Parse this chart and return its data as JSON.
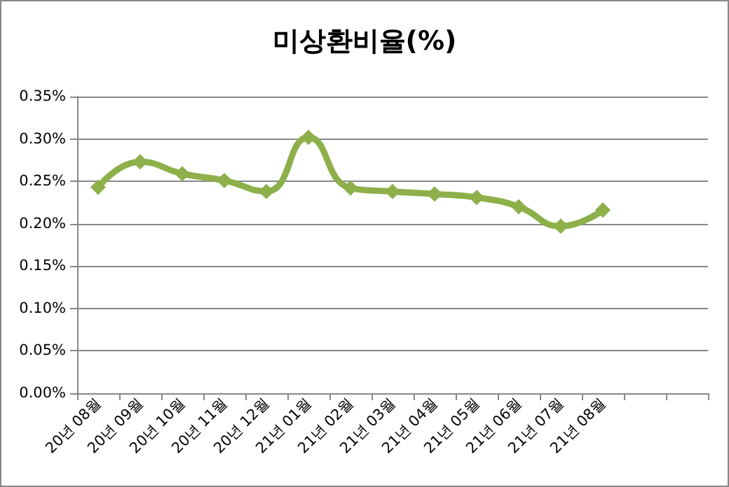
{
  "chart_data": {
    "type": "line",
    "title": "미상환비율(%)",
    "categories": [
      "20년 08월",
      "20년 09월",
      "20년 10월",
      "20년 11월",
      "20년 12월",
      "21년 01월",
      "21년 02월",
      "21년 03월",
      "21년 04월",
      "21년 05월",
      "21년 06월",
      "21년 07월",
      "21년 08월",
      null,
      null
    ],
    "series": [
      {
        "color": "#8db04a",
        "values": [
          0.243,
          0.273,
          0.259,
          0.251,
          0.238,
          0.302,
          0.242,
          0.238,
          0.235,
          0.231,
          0.22,
          0.197,
          0.216,
          null,
          null
        ]
      }
    ],
    "ylim": [
      0,
      0.35
    ],
    "yticks": [
      {
        "value": 0,
        "label": "0.00%"
      },
      {
        "value": 0.05,
        "label": "0.05%"
      },
      {
        "value": 0.1,
        "label": "0.10%"
      },
      {
        "value": 0.15,
        "label": "0.15%"
      },
      {
        "value": 0.2,
        "label": "0.20%"
      },
      {
        "value": 0.25,
        "label": "0.25%"
      },
      {
        "value": 0.3,
        "label": "0.30%"
      },
      {
        "value": 0.35,
        "label": "0.35%"
      }
    ],
    "grid": "y",
    "marker": "diamond",
    "line_style": "solid"
  }
}
